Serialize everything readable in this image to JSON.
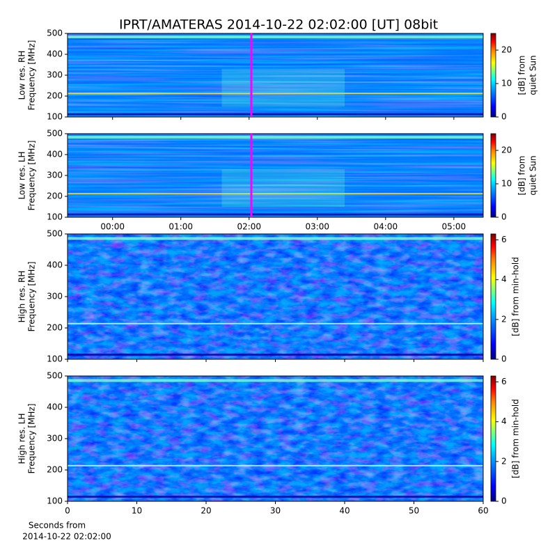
{
  "chart_data": [
    {
      "type": "heatmap",
      "title": "IPRT/AMATERAS 2014-10-22 02:02:00 [UT]   08bit",
      "ylabel": [
        "Low res. RH",
        "Frequency [MHz]"
      ],
      "ylim": [
        100,
        500
      ],
      "yticks": [
        100,
        200,
        300,
        400,
        500
      ],
      "xlim": [
        -0.66,
        5.43
      ],
      "xticks": [
        {
          "value": 0,
          "label": "00:00"
        },
        {
          "value": 1,
          "label": "01:00"
        },
        {
          "value": 2,
          "label": "02:00"
        },
        {
          "value": 3,
          "label": "03:00"
        },
        {
          "value": 4,
          "label": "04:00"
        },
        {
          "value": 5,
          "label": "05:00"
        }
      ],
      "show_xticklabels": false,
      "marker": 2.033,
      "marker_color": "#ff00ff",
      "colormap": "jet",
      "clim": [
        0,
        25
      ],
      "cticks": [
        0,
        10,
        20
      ],
      "clabel": [
        "[dB] from",
        "quiet Sun"
      ]
    },
    {
      "type": "heatmap",
      "ylabel": [
        "Low res. LH",
        "Frequency [MHz]"
      ],
      "ylim": [
        100,
        500
      ],
      "yticks": [
        100,
        200,
        300,
        400,
        500
      ],
      "xlim": [
        -0.66,
        5.43
      ],
      "xticks": [
        {
          "value": 0,
          "label": "00:00"
        },
        {
          "value": 1,
          "label": "01:00"
        },
        {
          "value": 2,
          "label": "02:00"
        },
        {
          "value": 3,
          "label": "03:00"
        },
        {
          "value": 4,
          "label": "04:00"
        },
        {
          "value": 5,
          "label": "05:00"
        }
      ],
      "show_xticklabels": true,
      "marker": 2.033,
      "marker_color": "#ff00ff",
      "colormap": "jet",
      "clim": [
        0,
        25
      ],
      "cticks": [
        0,
        10,
        20
      ],
      "clabel": [
        "[dB] from",
        "quiet Sun"
      ]
    },
    {
      "type": "heatmap",
      "ylabel": [
        "High res. RH",
        "Frequency [MHz]"
      ],
      "ylim": [
        100,
        500
      ],
      "yticks": [
        100,
        200,
        300,
        400,
        500
      ],
      "xlim": [
        0,
        60
      ],
      "xticks": [
        0,
        10,
        20,
        30,
        40,
        50,
        60
      ],
      "show_xticklabels": false,
      "colormap": "jet",
      "clim": [
        0,
        6.3
      ],
      "cticks": [
        0,
        2,
        4,
        6
      ],
      "clabel": [
        "[dB] from min-hold"
      ]
    },
    {
      "type": "heatmap",
      "ylabel": [
        "High res. LH",
        "Frequency [MHz]"
      ],
      "ylim": [
        100,
        500
      ],
      "yticks": [
        100,
        200,
        300,
        400,
        500
      ],
      "xlim": [
        0,
        60
      ],
      "xticks": [
        0,
        10,
        20,
        30,
        40,
        50,
        60
      ],
      "show_xticklabels": true,
      "xlabel": [
        "Seconds from",
        "2014-10-22 02:02:00"
      ],
      "colormap": "jet",
      "clim": [
        0,
        6.3
      ],
      "cticks": [
        0,
        2,
        4,
        6
      ],
      "clabel": [
        "[dB] from min-hold"
      ]
    }
  ]
}
